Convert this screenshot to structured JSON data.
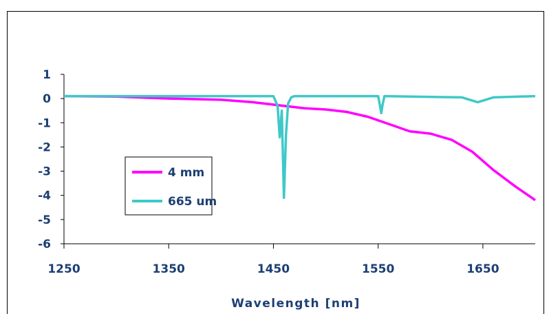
{
  "chart_data": {
    "type": "line",
    "title": "",
    "xlabel": "Wavelength [nm]",
    "ylabel": "",
    "xlim": [
      1250,
      1700
    ],
    "ylim": [
      -6,
      1
    ],
    "xticks": [
      1250,
      1350,
      1450,
      1550,
      1650
    ],
    "yticks": [
      1,
      0,
      -1,
      -2,
      -3,
      -4,
      -5,
      -6
    ],
    "grid": false,
    "legend_position": "lower-left inside",
    "series": [
      {
        "name": "4 mm",
        "color": "#ff00ff",
        "x": [
          1250,
          1300,
          1350,
          1400,
          1430,
          1460,
          1480,
          1500,
          1520,
          1540,
          1560,
          1580,
          1600,
          1620,
          1640,
          1660,
          1680,
          1700
        ],
        "y": [
          0.1,
          0.08,
          0.0,
          -0.05,
          -0.15,
          -0.3,
          -0.4,
          -0.45,
          -0.55,
          -0.75,
          -1.05,
          -1.35,
          -1.45,
          -1.7,
          -2.2,
          -2.95,
          -3.6,
          -4.2
        ]
      },
      {
        "name": "665 um",
        "color": "#40c8c8",
        "x": [
          1250,
          1400,
          1450,
          1454,
          1456,
          1458,
          1460,
          1462,
          1464,
          1467,
          1470,
          1550,
          1552,
          1553,
          1554,
          1556,
          1630,
          1645,
          1660,
          1700
        ],
        "y": [
          0.1,
          0.1,
          0.1,
          -0.3,
          -1.6,
          -0.5,
          -4.1,
          -1.5,
          -0.2,
          0.05,
          0.1,
          0.1,
          -0.35,
          -0.6,
          -0.3,
          0.1,
          0.05,
          -0.15,
          0.05,
          0.1
        ]
      }
    ]
  }
}
